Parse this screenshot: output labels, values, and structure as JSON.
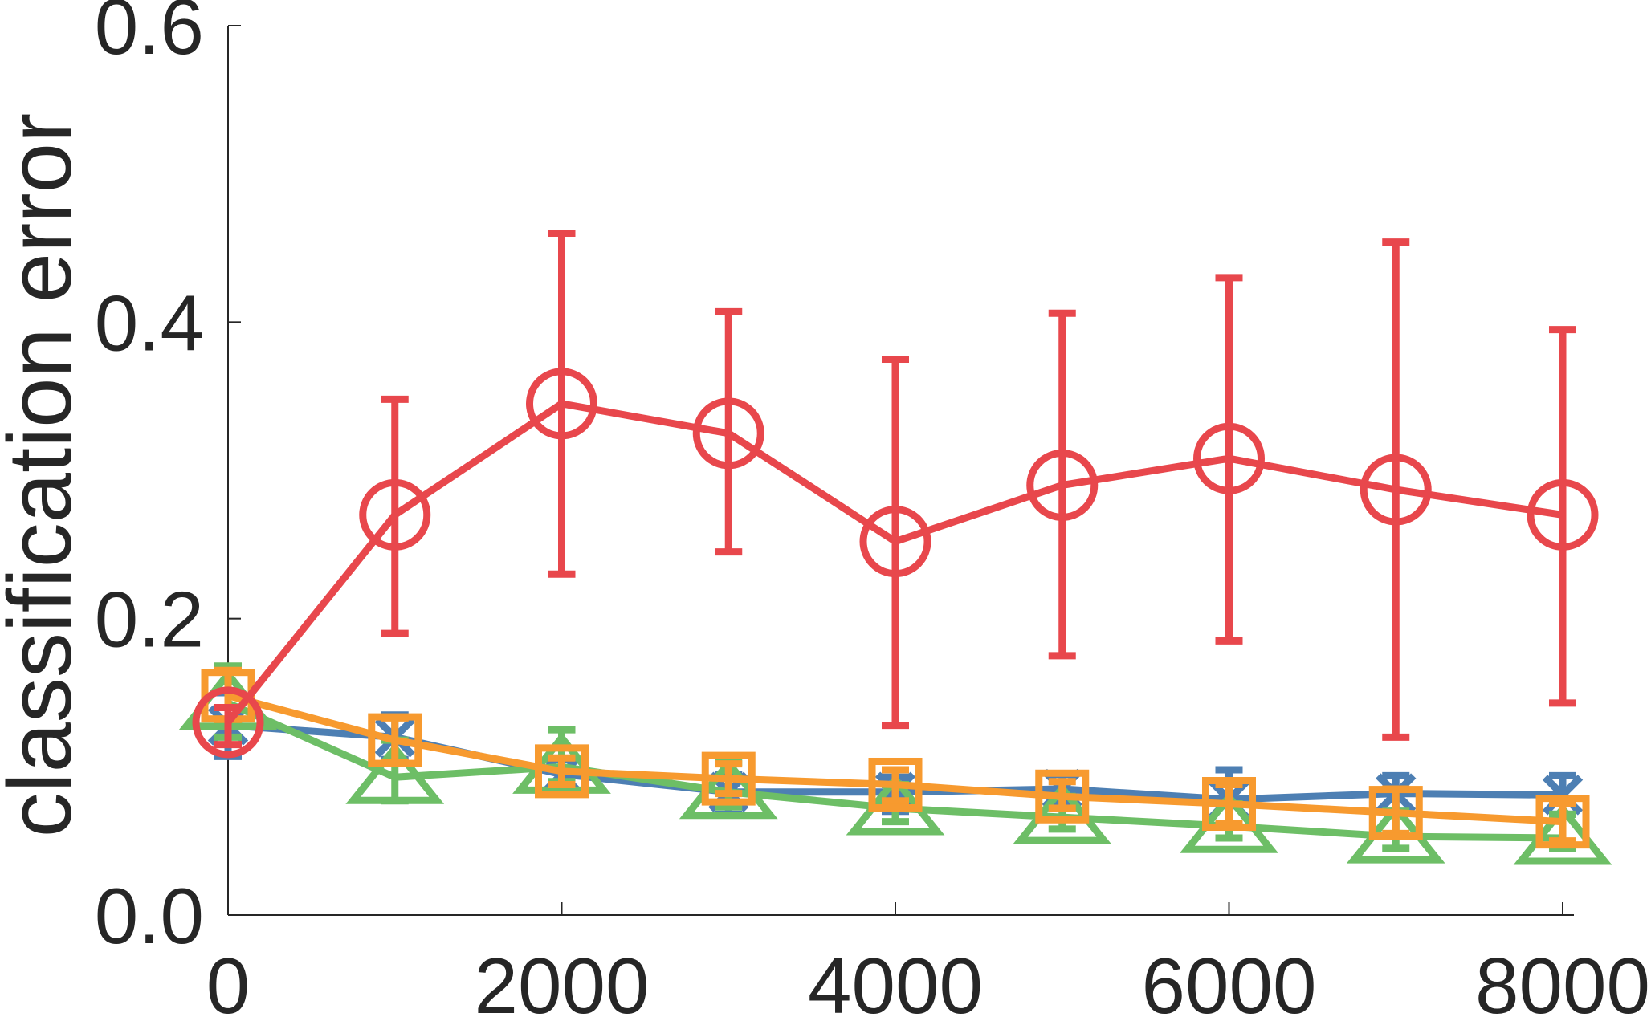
{
  "chart_data": {
    "type": "line",
    "title": "",
    "xlabel": "",
    "ylabel": "classification error",
    "xlim": [
      0,
      8000
    ],
    "ylim": [
      0,
      0.6
    ],
    "xticks": [
      0,
      2000,
      4000,
      6000,
      8000
    ],
    "xtick_labels": [
      "0",
      "2000",
      "4000",
      "6000",
      "8000"
    ],
    "yticks": [
      0,
      0.2,
      0.4,
      0.6
    ],
    "ytick_labels": [
      "0.0",
      "0.2",
      "0.4",
      "0.6"
    ],
    "grid": false,
    "legend": false,
    "x": [
      0,
      1000,
      2000,
      3000,
      4000,
      5000,
      6000,
      7000,
      8000
    ],
    "series": [
      {
        "color": "#e8474c",
        "marker": "circle",
        "values": [
          0.13,
          0.27,
          0.345,
          0.325,
          0.252,
          0.29,
          0.308,
          0.287,
          0.27
        ],
        "err_low": [
          0.115,
          0.19,
          0.23,
          0.245,
          0.128,
          0.175,
          0.185,
          0.12,
          0.143
        ],
        "err_high": [
          0.14,
          0.348,
          0.46,
          0.407,
          0.375,
          0.406,
          0.43,
          0.454,
          0.395
        ]
      },
      {
        "color": "#4d7fb3",
        "marker": "x",
        "values": [
          0.128,
          0.12,
          0.095,
          0.083,
          0.083,
          0.085,
          0.078,
          0.082,
          0.081
        ],
        "err_low": [
          0.107,
          0.105,
          0.085,
          0.068,
          0.07,
          0.075,
          0.062,
          0.07,
          0.068
        ],
        "err_high": [
          0.15,
          0.135,
          0.105,
          0.095,
          0.093,
          0.095,
          0.098,
          0.094,
          0.094
        ]
      },
      {
        "color": "#6dbe66",
        "marker": "triangle",
        "values": [
          0.143,
          0.093,
          0.1,
          0.083,
          0.072,
          0.066,
          0.06,
          0.053,
          0.052
        ],
        "err_low": [
          0.12,
          0.077,
          0.09,
          0.073,
          0.063,
          0.058,
          0.052,
          0.045,
          0.045
        ],
        "err_high": [
          0.168,
          0.118,
          0.125,
          0.103,
          0.088,
          0.08,
          0.075,
          0.07,
          0.068
        ]
      },
      {
        "color": "#f79a2f",
        "marker": "square",
        "values": [
          0.148,
          0.118,
          0.097,
          0.092,
          0.088,
          0.08,
          0.075,
          0.069,
          0.063
        ],
        "err_low": [
          0.132,
          0.103,
          0.088,
          0.082,
          0.077,
          0.072,
          0.062,
          0.055,
          0.05
        ],
        "err_high": [
          0.165,
          0.133,
          0.106,
          0.102,
          0.098,
          0.09,
          0.088,
          0.085,
          0.075
        ]
      }
    ]
  }
}
